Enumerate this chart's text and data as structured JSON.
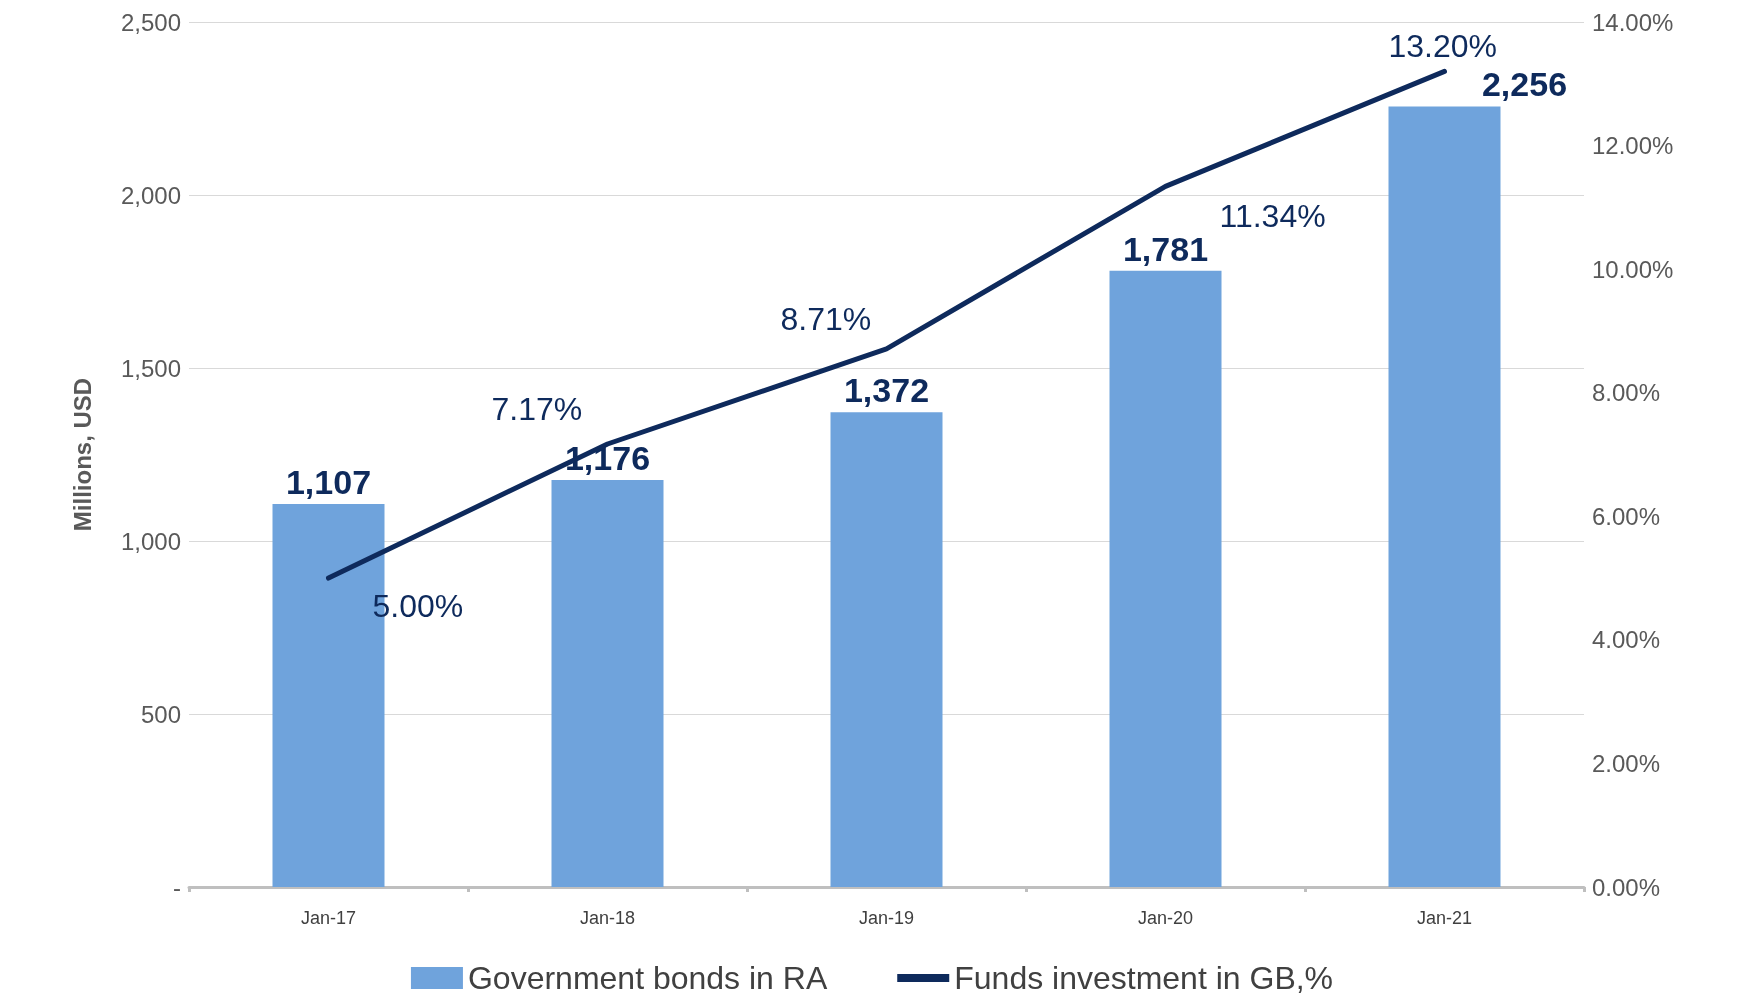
{
  "chart_data": {
    "type": "bar",
    "ylabel": "Millions, USD",
    "categories": [
      "Jan-17",
      "Jan-18",
      "Jan-19",
      "Jan-20",
      "Jan-21"
    ],
    "series": [
      {
        "name": "Government bonds in RA",
        "color": "#6fa3dc",
        "values": [
          1107,
          1176,
          1372,
          1781,
          2256
        ],
        "value_labels": [
          "1,107",
          "1,176",
          "1,372",
          "1,781",
          "2,256"
        ]
      },
      {
        "name": "Funds investment in GB,%",
        "type": "line",
        "axis": "y2",
        "color": "#0e2a5c",
        "values": [
          5.0,
          7.17,
          8.71,
          11.34,
          13.2
        ],
        "value_labels": [
          "5.00%",
          "7.17%",
          "8.71%",
          "11.34%",
          "13.20%"
        ]
      }
    ],
    "ylim": [
      0,
      2500
    ],
    "yticks": [
      {
        "value": 0,
        "label": "-"
      },
      500,
      {
        "value": 1000,
        "label": "1,000"
      },
      {
        "value": 1500,
        "label": "1,500"
      },
      {
        "value": 2000,
        "label": "2,000"
      },
      {
        "value": 2500,
        "label": "2,500"
      }
    ],
    "y2lim": [
      0,
      14
    ],
    "y2ticks": [
      {
        "value": 0,
        "label": "0.00%"
      },
      {
        "value": 2,
        "label": "2.00%"
      },
      {
        "value": 4,
        "label": "4.00%"
      },
      {
        "value": 6,
        "label": "6.00%"
      },
      {
        "value": 8,
        "label": "8.00%"
      },
      {
        "value": 10,
        "label": "10.00%"
      },
      {
        "value": 12,
        "label": "12.00%"
      },
      {
        "value": 14,
        "label": "14.00%"
      }
    ],
    "grid": "y",
    "legend": "bottom",
    "marker": "none",
    "line_style": "solid"
  }
}
